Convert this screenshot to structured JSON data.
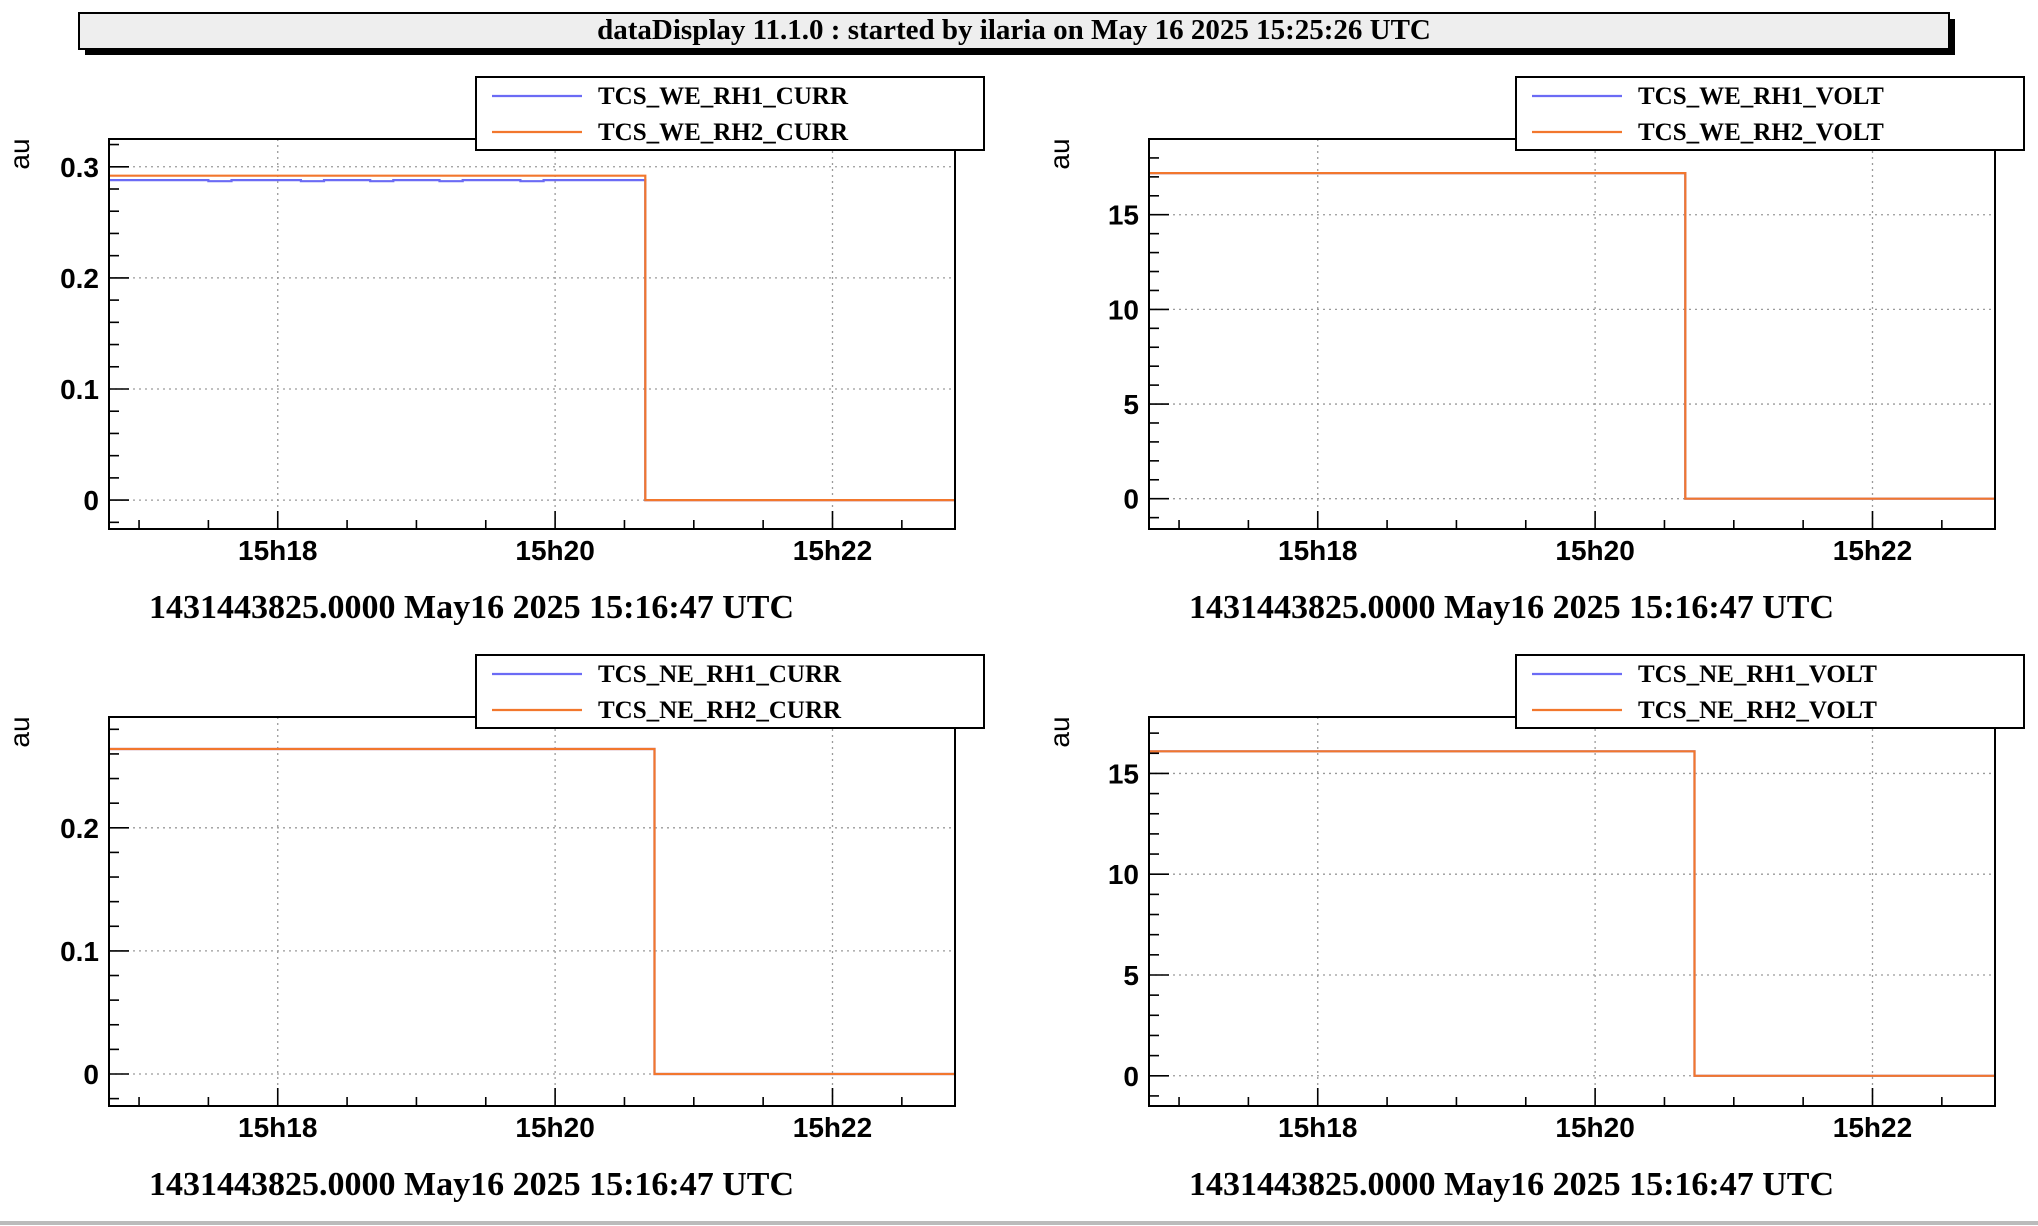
{
  "page_title": "dataDisplay 11.1.0 : started by ilaria on May 16 2025 15:25:26 UTC",
  "colors": {
    "series1": "#6b6bf5",
    "series2": "#f2772d",
    "frame": "#000000",
    "grid": "#9a9a9a",
    "background": "#ffffff"
  },
  "chart_data": [
    {
      "type": "line",
      "ylabel": "au",
      "xlabel": "1431443825.0000 May16 2025 15:16:47 UTC",
      "xlim": [
        "15:16:47",
        "15:22:53"
      ],
      "ylim": [
        -0.026,
        0.325
      ],
      "yticks": [
        0,
        0.1,
        0.2,
        0.3
      ],
      "ytick_labels": [
        "0",
        "0.1",
        "0.2",
        "0.3"
      ],
      "xticks": [
        "15:18:00",
        "15:20:00",
        "15:22:00"
      ],
      "xtick_labels": [
        "15h18",
        "15h20",
        "15h22"
      ],
      "grid": true,
      "legend_position": "top-right",
      "series": [
        {
          "name": "TCS_WE_RH1_CURR",
          "color": "#6b6bf5",
          "points": [
            [
              "15:16:47",
              0.288
            ],
            [
              "15:17:30",
              0.287
            ],
            [
              "15:17:40",
              0.288
            ],
            [
              "15:18:10",
              0.287
            ],
            [
              "15:18:20",
              0.288
            ],
            [
              "15:18:40",
              0.287
            ],
            [
              "15:18:50",
              0.288
            ],
            [
              "15:19:10",
              0.287
            ],
            [
              "15:19:20",
              0.288
            ],
            [
              "15:19:45",
              0.287
            ],
            [
              "15:19:55",
              0.288
            ],
            [
              "15:20:39",
              0.0
            ],
            [
              "15:22:53",
              0.0
            ]
          ]
        },
        {
          "name": "TCS_WE_RH2_CURR",
          "color": "#f2772d",
          "points": [
            [
              "15:16:47",
              0.292
            ],
            [
              "15:20:39",
              0.0
            ],
            [
              "15:22:53",
              0.0
            ]
          ]
        }
      ]
    },
    {
      "type": "line",
      "ylabel": "au",
      "xlabel": "1431443825.0000 May16 2025 15:16:47 UTC",
      "xlim": [
        "15:16:47",
        "15:22:53"
      ],
      "ylim": [
        -1.6,
        19.0
      ],
      "yticks": [
        0,
        5,
        10,
        15
      ],
      "ytick_labels": [
        "0",
        "5",
        "10",
        "15"
      ],
      "xticks": [
        "15:18:00",
        "15:20:00",
        "15:22:00"
      ],
      "xtick_labels": [
        "15h18",
        "15h20",
        "15h22"
      ],
      "grid": true,
      "legend_position": "top-right",
      "series": [
        {
          "name": "TCS_WE_RH1_VOLT",
          "color": "#6b6bf5",
          "points": [
            [
              "15:16:47",
              17.2
            ],
            [
              "15:20:39",
              0.0
            ],
            [
              "15:22:53",
              0.0
            ]
          ]
        },
        {
          "name": "TCS_WE_RH2_VOLT",
          "color": "#f2772d",
          "points": [
            [
              "15:16:47",
              17.2
            ],
            [
              "15:20:39",
              0.0
            ],
            [
              "15:22:53",
              0.0
            ]
          ]
        }
      ]
    },
    {
      "type": "line",
      "ylabel": "au",
      "xlabel": "1431443825.0000 May16 2025 15:16:47 UTC",
      "xlim": [
        "15:16:47",
        "15:22:53"
      ],
      "ylim": [
        -0.026,
        0.29
      ],
      "yticks": [
        0,
        0.1,
        0.2
      ],
      "ytick_labels": [
        "0",
        "0.1",
        "0.2"
      ],
      "xticks": [
        "15:18:00",
        "15:20:00",
        "15:22:00"
      ],
      "xtick_labels": [
        "15h18",
        "15h20",
        "15h22"
      ],
      "grid": true,
      "legend_position": "top-right",
      "series": [
        {
          "name": "TCS_NE_RH1_CURR",
          "color": "#6b6bf5",
          "points": [
            [
              "15:16:47",
              0.264
            ],
            [
              "15:20:43",
              0.0
            ],
            [
              "15:22:53",
              0.0
            ]
          ]
        },
        {
          "name": "TCS_NE_RH2_CURR",
          "color": "#f2772d",
          "points": [
            [
              "15:16:47",
              0.264
            ],
            [
              "15:20:43",
              0.0
            ],
            [
              "15:22:53",
              0.0
            ]
          ]
        }
      ]
    },
    {
      "type": "line",
      "ylabel": "au",
      "xlabel": "1431443825.0000 May16 2025 15:16:47 UTC",
      "xlim": [
        "15:16:47",
        "15:22:53"
      ],
      "ylim": [
        -1.5,
        17.8
      ],
      "yticks": [
        0,
        5,
        10,
        15
      ],
      "ytick_labels": [
        "0",
        "5",
        "10",
        "15"
      ],
      "xticks": [
        "15:18:00",
        "15:20:00",
        "15:22:00"
      ],
      "xtick_labels": [
        "15h18",
        "15h20",
        "15h22"
      ],
      "grid": true,
      "legend_position": "top-right",
      "series": [
        {
          "name": "TCS_NE_RH1_VOLT",
          "color": "#6b6bf5",
          "points": [
            [
              "15:16:47",
              16.1
            ],
            [
              "15:20:43",
              0.0
            ],
            [
              "15:22:53",
              0.0
            ]
          ]
        },
        {
          "name": "TCS_NE_RH2_VOLT",
          "color": "#f2772d",
          "points": [
            [
              "15:16:47",
              16.1
            ],
            [
              "15:20:43",
              0.0
            ],
            [
              "15:22:53",
              0.0
            ]
          ]
        }
      ]
    }
  ]
}
